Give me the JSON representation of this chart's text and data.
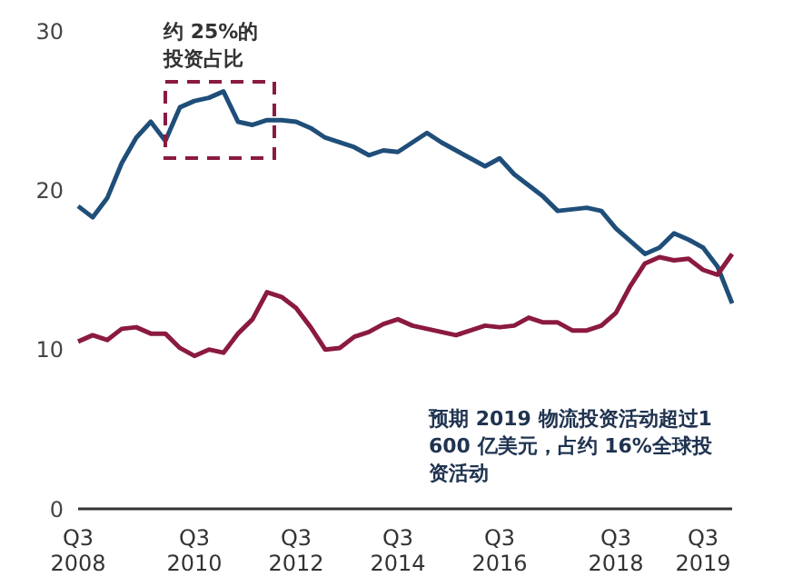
{
  "chart_data": {
    "type": "line",
    "categories": [
      "Q3 2008",
      null,
      null,
      null,
      null,
      null,
      null,
      null,
      "Q3 2010",
      null,
      null,
      null,
      null,
      null,
      null,
      "Q3 2012",
      null,
      null,
      null,
      null,
      null,
      null,
      "Q3 2014",
      null,
      null,
      null,
      null,
      null,
      null,
      "Q3 2016",
      null,
      null,
      null,
      null,
      null,
      null,
      null,
      "Q3 2018",
      null,
      null,
      null,
      null,
      null,
      "Q3 2019",
      null,
      null
    ],
    "series": [
      {
        "color": "#1f4e79",
        "values": [
          19.0,
          18.3,
          19.5,
          21.7,
          23.3,
          24.3,
          23.1,
          25.2,
          25.6,
          25.8,
          26.2,
          24.3,
          24.1,
          24.4,
          24.4,
          24.3,
          23.9,
          23.3,
          23.0,
          22.7,
          22.2,
          22.5,
          22.4,
          23.0,
          23.6,
          23.0,
          22.5,
          22.0,
          21.5,
          22.0,
          21.0,
          20.3,
          19.6,
          18.7,
          18.8,
          18.9,
          18.7,
          17.6,
          16.8,
          16.0,
          16.4,
          17.3,
          16.9,
          16.4,
          15.2,
          12.9
        ]
      },
      {
        "color": "#8b1a3f",
        "values": [
          10.5,
          10.9,
          10.6,
          11.3,
          11.4,
          11.0,
          11.0,
          10.1,
          9.6,
          10.0,
          9.8,
          11.0,
          11.9,
          13.6,
          13.3,
          12.6,
          11.4,
          10.0,
          10.1,
          10.8,
          11.1,
          11.6,
          11.9,
          11.5,
          11.3,
          11.1,
          10.9,
          11.2,
          11.5,
          11.4,
          11.5,
          12.0,
          11.7,
          11.7,
          11.2,
          11.2,
          11.5,
          12.3,
          14.0,
          15.4,
          15.8,
          15.6,
          15.7,
          15.0,
          14.7,
          16.0
        ]
      }
    ],
    "ylim": [
      0,
      30
    ],
    "yticks": [
      0,
      10,
      20,
      30
    ],
    "grid": false,
    "legend": false,
    "marker": "none",
    "line_style": "solid",
    "annotations": [
      "约 25%的投资占比",
      "预期 2019 物流投资活动超过1600 亿美元，占约 16%全球投资活动"
    ]
  }
}
